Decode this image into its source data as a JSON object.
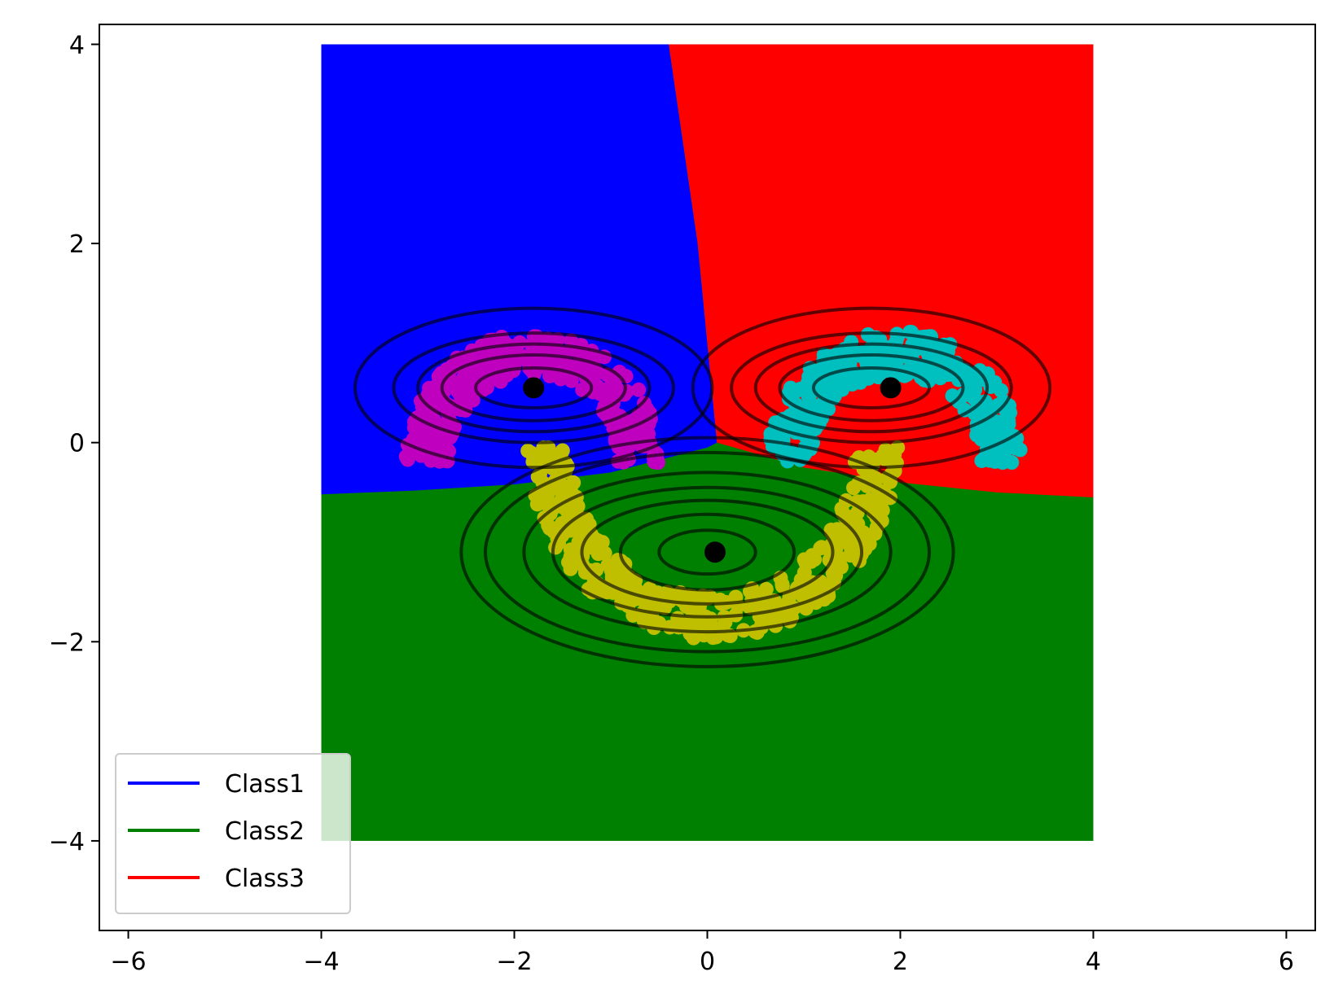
{
  "chart_data": {
    "type": "scatter",
    "title": "",
    "xlabel": "",
    "ylabel": "",
    "xlim": [
      -6.3,
      6.3
    ],
    "ylim": [
      -4.9,
      4.2
    ],
    "xticks": [
      -6,
      -4,
      -2,
      0,
      2,
      4,
      6
    ],
    "yticks": [
      -4,
      -2,
      0,
      2,
      4
    ],
    "xtick_labels": [
      "−6",
      "−4",
      "−2",
      "0",
      "2",
      "4",
      "6"
    ],
    "ytick_labels": [
      "−4",
      "−2",
      "0",
      "2",
      "4"
    ],
    "grid": false,
    "legend_position": "lower-left",
    "legend": [
      {
        "label": "Class1",
        "color": "#0000ff"
      },
      {
        "label": "Class2",
        "color": "#008000"
      },
      {
        "label": "Class3",
        "color": "#ff0000"
      }
    ],
    "decision_region_extent": {
      "x": [
        -4,
        4
      ],
      "y": [
        -4,
        4
      ]
    },
    "regions": {
      "class1_color": "#0000ff",
      "class2_color": "#008000",
      "class3_color": "#ff0000",
      "boundary_1_3": [
        [
          -0.4,
          4.0
        ],
        [
          -0.1,
          2.0
        ],
        [
          0.1,
          0.0
        ]
      ],
      "boundary_lower": [
        [
          -4.0,
          -0.52
        ],
        [
          -3.0,
          -0.48
        ],
        [
          -2.0,
          -0.42
        ],
        [
          -1.0,
          -0.3
        ],
        [
          0.0,
          -0.05
        ],
        [
          1.0,
          -0.25
        ],
        [
          2.0,
          -0.4
        ],
        [
          3.0,
          -0.5
        ],
        [
          4.0,
          -0.55
        ]
      ]
    },
    "means": [
      {
        "name": "Class1",
        "x": -1.8,
        "y": 0.55
      },
      {
        "name": "Class2",
        "x": 0.08,
        "y": -1.1
      },
      {
        "name": "Class3",
        "x": 1.9,
        "y": 0.55
      }
    ],
    "contours": [
      {
        "cx": -1.8,
        "cy": 0.55,
        "rx": [
          0.6,
          0.95,
          1.2,
          1.45,
          1.85
        ],
        "ry": [
          0.2,
          0.33,
          0.44,
          0.55,
          0.8
        ]
      },
      {
        "cx": 1.7,
        "cy": 0.55,
        "rx": [
          0.6,
          0.95,
          1.2,
          1.45,
          1.85
        ],
        "ry": [
          0.2,
          0.33,
          0.44,
          0.55,
          0.8
        ]
      },
      {
        "cx": 0.0,
        "cy": -1.1,
        "rx": [
          0.5,
          0.9,
          1.3,
          1.6,
          1.9,
          2.3,
          2.55
        ],
        "ry": [
          0.22,
          0.38,
          0.52,
          0.65,
          0.8,
          1.0,
          1.15
        ]
      }
    ],
    "data_clusters": [
      {
        "name": "magenta",
        "color": "#bf00bf",
        "type": "upper-arc",
        "cx": -1.8,
        "cy": -0.2,
        "r": 1.1,
        "ry": 1.35,
        "count": 320
      },
      {
        "name": "cyan",
        "color": "#00bfbf",
        "type": "upper-arc",
        "cx": 1.95,
        "cy": -0.2,
        "r": 1.1,
        "ry": 1.35,
        "count": 320
      },
      {
        "name": "yellow",
        "color": "#bfbf00",
        "type": "lower-arc",
        "cx": 0.05,
        "cy": -0.05,
        "r": 1.7,
        "ry": 1.7,
        "count": 420
      }
    ]
  }
}
